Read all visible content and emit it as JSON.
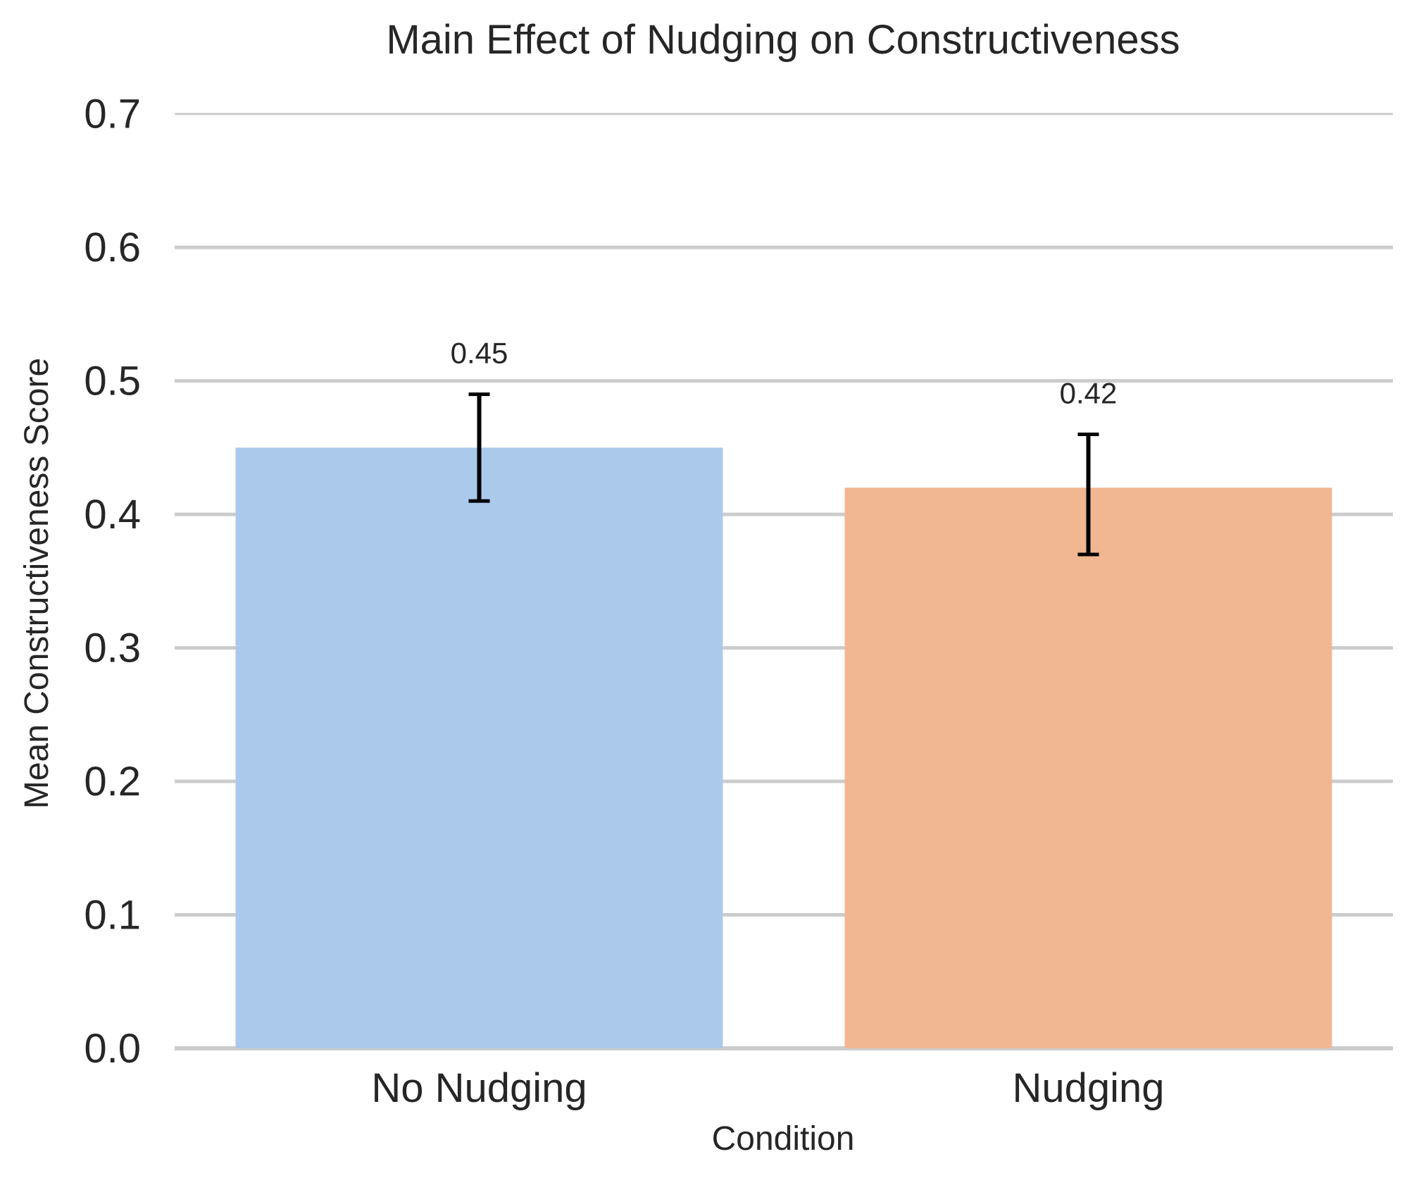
{
  "chart_data": {
    "type": "bar",
    "title": "Main Effect of Nudging on Constructiveness",
    "xlabel": "Condition",
    "ylabel": "Mean Constructiveness Score",
    "categories": [
      "No Nudging",
      "Nudging"
    ],
    "values": [
      0.45,
      0.42
    ],
    "value_labels": [
      "0.45",
      "0.42"
    ],
    "error_bars": [
      {
        "low": 0.41,
        "high": 0.49
      },
      {
        "low": 0.37,
        "high": 0.46
      }
    ],
    "colors": [
      "#abc9eb",
      "#f0b792"
    ],
    "ylim": [
      0,
      0.72
    ],
    "yticks": [
      0.0,
      0.1,
      0.2,
      0.3,
      0.4,
      0.5,
      0.6,
      0.7
    ],
    "ytick_labels": [
      "0.0",
      "0.1",
      "0.2",
      "0.3",
      "0.4",
      "0.5",
      "0.6",
      "0.7"
    ],
    "grid": true,
    "grid_color": "#cccccc",
    "error_bar_color": "#000000"
  }
}
